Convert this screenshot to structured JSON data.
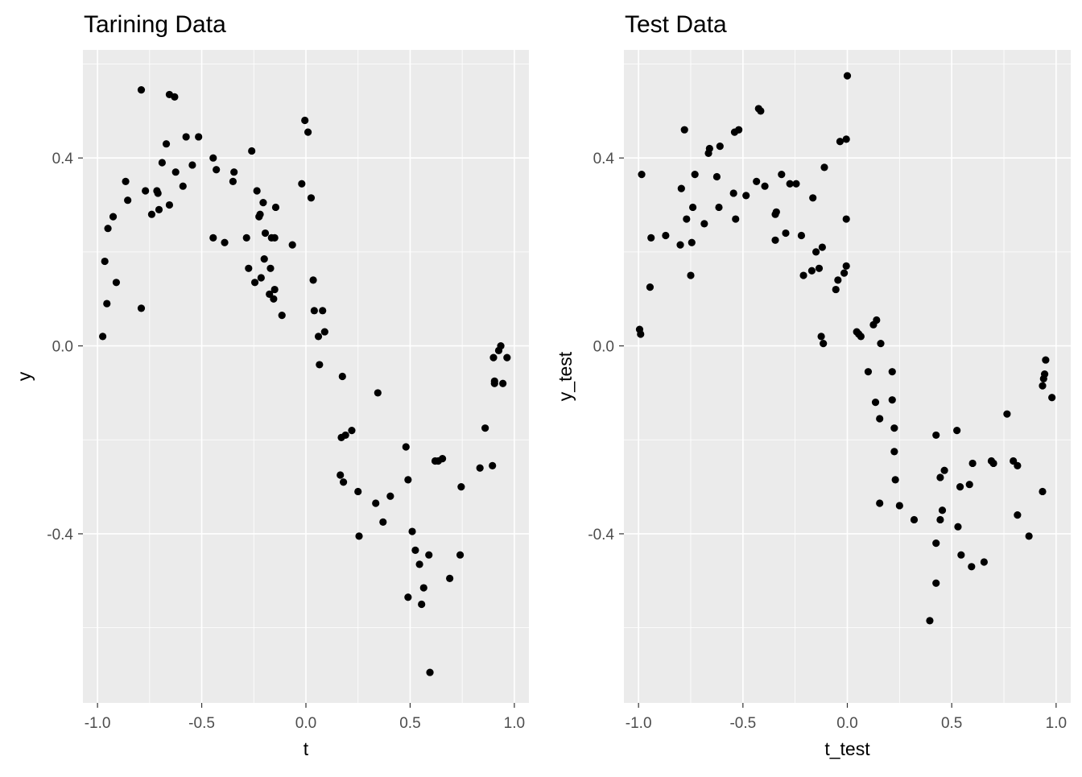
{
  "chart_data": [
    {
      "type": "scatter",
      "title": "Tarining Data",
      "xlabel": "t",
      "ylabel": "y",
      "xlim": [
        -1.07,
        1.07
      ],
      "ylim": [
        -0.76,
        0.63
      ],
      "xticks": [
        -1.0,
        -0.5,
        0.0,
        0.5,
        1.0
      ],
      "xtick_labels": [
        "-1.0",
        "-0.5",
        "0.0",
        "0.5",
        "1.0"
      ],
      "yticks": [
        -0.4,
        0.0,
        0.4
      ],
      "ytick_labels": [
        "-0.4",
        "0.0",
        "0.4"
      ],
      "grid": true,
      "points": [
        [
          -0.975,
          0.02
        ],
        [
          -0.965,
          0.18
        ],
        [
          -0.955,
          0.09
        ],
        [
          -0.95,
          0.25
        ],
        [
          -0.925,
          0.275
        ],
        [
          -0.91,
          0.135
        ],
        [
          -0.865,
          0.35
        ],
        [
          -0.855,
          0.31
        ],
        [
          -0.79,
          0.545
        ],
        [
          -0.79,
          0.08
        ],
        [
          -0.77,
          0.33
        ],
        [
          -0.74,
          0.28
        ],
        [
          -0.715,
          0.33
        ],
        [
          -0.71,
          0.325
        ],
        [
          -0.705,
          0.29
        ],
        [
          -0.69,
          0.39
        ],
        [
          -0.67,
          0.43
        ],
        [
          -0.655,
          0.535
        ],
        [
          -0.655,
          0.3
        ],
        [
          -0.63,
          0.53
        ],
        [
          -0.625,
          0.37
        ],
        [
          -0.59,
          0.34
        ],
        [
          -0.575,
          0.445
        ],
        [
          -0.545,
          0.385
        ],
        [
          -0.515,
          0.445
        ],
        [
          -0.445,
          0.4
        ],
        [
          -0.445,
          0.23
        ],
        [
          -0.43,
          0.375
        ],
        [
          -0.39,
          0.22
        ],
        [
          -0.35,
          0.35
        ],
        [
          -0.345,
          0.37
        ],
        [
          -0.285,
          0.23
        ],
        [
          -0.275,
          0.165
        ],
        [
          -0.26,
          0.415
        ],
        [
          -0.245,
          0.135
        ],
        [
          -0.235,
          0.33
        ],
        [
          -0.225,
          0.275
        ],
        [
          -0.22,
          0.28
        ],
        [
          -0.215,
          0.145
        ],
        [
          -0.205,
          0.305
        ],
        [
          -0.2,
          0.185
        ],
        [
          -0.195,
          0.24
        ],
        [
          -0.175,
          0.11
        ],
        [
          -0.17,
          0.165
        ],
        [
          -0.165,
          0.23
        ],
        [
          -0.155,
          0.1
        ],
        [
          -0.15,
          0.23
        ],
        [
          -0.15,
          0.12
        ],
        [
          -0.145,
          0.295
        ],
        [
          -0.115,
          0.065
        ],
        [
          -0.065,
          0.215
        ],
        [
          -0.02,
          0.345
        ],
        [
          -0.005,
          0.48
        ],
        [
          0.01,
          0.455
        ],
        [
          0.025,
          0.315
        ],
        [
          0.035,
          0.14
        ],
        [
          0.04,
          0.075
        ],
        [
          0.06,
          0.02
        ],
        [
          0.065,
          -0.04
        ],
        [
          0.08,
          0.075
        ],
        [
          0.09,
          0.03
        ],
        [
          0.165,
          -0.275
        ],
        [
          0.17,
          -0.195
        ],
        [
          0.175,
          -0.065
        ],
        [
          0.18,
          -0.29
        ],
        [
          0.19,
          -0.19
        ],
        [
          0.22,
          -0.18
        ],
        [
          0.25,
          -0.31
        ],
        [
          0.255,
          -0.405
        ],
        [
          0.335,
          -0.335
        ],
        [
          0.345,
          -0.1
        ],
        [
          0.37,
          -0.375
        ],
        [
          0.405,
          -0.32
        ],
        [
          0.48,
          -0.215
        ],
        [
          0.49,
          -0.285
        ],
        [
          0.49,
          -0.535
        ],
        [
          0.51,
          -0.395
        ],
        [
          0.525,
          -0.435
        ],
        [
          0.545,
          -0.465
        ],
        [
          0.555,
          -0.55
        ],
        [
          0.565,
          -0.515
        ],
        [
          0.59,
          -0.445
        ],
        [
          0.595,
          -0.695
        ],
        [
          0.62,
          -0.245
        ],
        [
          0.635,
          -0.245
        ],
        [
          0.655,
          -0.24
        ],
        [
          0.69,
          -0.495
        ],
        [
          0.74,
          -0.445
        ],
        [
          0.745,
          -0.3
        ],
        [
          0.835,
          -0.26
        ],
        [
          0.86,
          -0.175
        ],
        [
          0.895,
          -0.255
        ],
        [
          0.9,
          -0.025
        ],
        [
          0.905,
          -0.08
        ],
        [
          0.905,
          -0.075
        ],
        [
          0.925,
          -0.01
        ],
        [
          0.935,
          0.0
        ],
        [
          0.945,
          -0.08
        ],
        [
          0.965,
          -0.025
        ]
      ]
    },
    {
      "type": "scatter",
      "title": "Test Data",
      "xlabel": "t_test",
      "ylabel": "y_test",
      "xlim": [
        -1.07,
        1.07
      ],
      "ylim": [
        -0.76,
        0.63
      ],
      "xticks": [
        -1.0,
        -0.5,
        0.0,
        0.5,
        1.0
      ],
      "xtick_labels": [
        "-1.0",
        "-0.5",
        "0.0",
        "0.5",
        "1.0"
      ],
      "yticks": [
        -0.4,
        0.0,
        0.4
      ],
      "ytick_labels": [
        "-0.4",
        "0.0",
        "0.4"
      ],
      "grid": true,
      "points": [
        [
          -0.995,
          0.035
        ],
        [
          -0.99,
          0.025
        ],
        [
          -0.985,
          0.365
        ],
        [
          -0.945,
          0.125
        ],
        [
          -0.94,
          0.23
        ],
        [
          -0.87,
          0.235
        ],
        [
          -0.8,
          0.215
        ],
        [
          -0.795,
          0.335
        ],
        [
          -0.78,
          0.46
        ],
        [
          -0.77,
          0.27
        ],
        [
          -0.75,
          0.15
        ],
        [
          -0.745,
          0.22
        ],
        [
          -0.74,
          0.295
        ],
        [
          -0.73,
          0.365
        ],
        [
          -0.685,
          0.26
        ],
        [
          -0.665,
          0.41
        ],
        [
          -0.66,
          0.42
        ],
        [
          -0.625,
          0.36
        ],
        [
          -0.615,
          0.295
        ],
        [
          -0.61,
          0.425
        ],
        [
          -0.545,
          0.325
        ],
        [
          -0.54,
          0.455
        ],
        [
          -0.535,
          0.27
        ],
        [
          -0.52,
          0.46
        ],
        [
          -0.485,
          0.32
        ],
        [
          -0.435,
          0.35
        ],
        [
          -0.425,
          0.505
        ],
        [
          -0.415,
          0.5
        ],
        [
          -0.395,
          0.34
        ],
        [
          -0.345,
          0.225
        ],
        [
          -0.345,
          0.28
        ],
        [
          -0.34,
          0.285
        ],
        [
          -0.315,
          0.365
        ],
        [
          -0.295,
          0.24
        ],
        [
          -0.275,
          0.345
        ],
        [
          -0.245,
          0.345
        ],
        [
          -0.22,
          0.235
        ],
        [
          -0.21,
          0.15
        ],
        [
          -0.17,
          0.16
        ],
        [
          -0.165,
          0.315
        ],
        [
          -0.15,
          0.2
        ],
        [
          -0.135,
          0.165
        ],
        [
          -0.125,
          0.02
        ],
        [
          -0.12,
          0.21
        ],
        [
          -0.115,
          0.005
        ],
        [
          -0.11,
          0.38
        ],
        [
          -0.055,
          0.12
        ],
        [
          -0.045,
          0.14
        ],
        [
          -0.035,
          0.435
        ],
        [
          -0.015,
          0.155
        ],
        [
          -0.005,
          0.44
        ],
        [
          -0.005,
          0.17
        ],
        [
          -0.005,
          0.27
        ],
        [
          0.0,
          0.575
        ],
        [
          0.045,
          0.03
        ],
        [
          0.055,
          0.025
        ],
        [
          0.065,
          0.02
        ],
        [
          0.1,
          -0.055
        ],
        [
          0.125,
          0.045
        ],
        [
          0.135,
          -0.12
        ],
        [
          0.14,
          0.055
        ],
        [
          0.155,
          -0.155
        ],
        [
          0.155,
          -0.335
        ],
        [
          0.16,
          0.005
        ],
        [
          0.215,
          -0.115
        ],
        [
          0.215,
          -0.055
        ],
        [
          0.225,
          -0.175
        ],
        [
          0.225,
          -0.225
        ],
        [
          0.23,
          -0.285
        ],
        [
          0.25,
          -0.34
        ],
        [
          0.32,
          -0.37
        ],
        [
          0.395,
          -0.585
        ],
        [
          0.425,
          -0.19
        ],
        [
          0.425,
          -0.42
        ],
        [
          0.425,
          -0.505
        ],
        [
          0.445,
          -0.28
        ],
        [
          0.445,
          -0.37
        ],
        [
          0.455,
          -0.35
        ],
        [
          0.465,
          -0.265
        ],
        [
          0.525,
          -0.18
        ],
        [
          0.53,
          -0.385
        ],
        [
          0.54,
          -0.3
        ],
        [
          0.545,
          -0.445
        ],
        [
          0.585,
          -0.295
        ],
        [
          0.595,
          -0.47
        ],
        [
          0.6,
          -0.25
        ],
        [
          0.655,
          -0.46
        ],
        [
          0.69,
          -0.245
        ],
        [
          0.7,
          -0.25
        ],
        [
          0.765,
          -0.145
        ],
        [
          0.795,
          -0.245
        ],
        [
          0.815,
          -0.255
        ],
        [
          0.815,
          -0.36
        ],
        [
          0.87,
          -0.405
        ],
        [
          0.935,
          -0.085
        ],
        [
          0.935,
          -0.31
        ],
        [
          0.94,
          -0.07
        ],
        [
          0.945,
          -0.06
        ],
        [
          0.95,
          -0.03
        ],
        [
          0.98,
          -0.11
        ]
      ]
    }
  ]
}
